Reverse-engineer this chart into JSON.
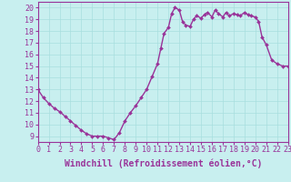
{
  "x": [
    0,
    0.5,
    1,
    1.5,
    2,
    2.5,
    3,
    3.5,
    4,
    4.5,
    5,
    5.5,
    6,
    6.5,
    7,
    7.5,
    8,
    8.5,
    9,
    9.5,
    10,
    10.5,
    11,
    11.3,
    11.6,
    12,
    12.3,
    12.6,
    13,
    13.3,
    13.6,
    14,
    14.3,
    14.6,
    15,
    15.3,
    15.6,
    16,
    16.3,
    16.6,
    17,
    17.3,
    17.6,
    18,
    18.3,
    18.6,
    19,
    19.3,
    19.6,
    20,
    20.3,
    20.6,
    21,
    21.5,
    22,
    22.5,
    23
  ],
  "y": [
    13.0,
    12.3,
    11.8,
    11.4,
    11.1,
    10.7,
    10.3,
    9.9,
    9.5,
    9.2,
    9.0,
    9.0,
    9.0,
    8.85,
    8.7,
    9.3,
    10.3,
    11.0,
    11.6,
    12.3,
    13.0,
    14.1,
    15.2,
    16.5,
    17.8,
    18.3,
    19.5,
    20.0,
    19.8,
    18.8,
    18.5,
    18.4,
    19.0,
    19.3,
    19.1,
    19.4,
    19.6,
    19.2,
    19.8,
    19.5,
    19.2,
    19.6,
    19.3,
    19.5,
    19.4,
    19.3,
    19.6,
    19.4,
    19.3,
    19.2,
    18.8,
    17.5,
    16.8,
    15.5,
    15.2,
    15.0,
    15.0
  ],
  "xlim": [
    0,
    23
  ],
  "ylim": [
    8.5,
    20.5
  ],
  "yticks": [
    9,
    10,
    11,
    12,
    13,
    14,
    15,
    16,
    17,
    18,
    19,
    20
  ],
  "xticks": [
    0,
    1,
    2,
    3,
    4,
    5,
    6,
    7,
    8,
    9,
    10,
    11,
    12,
    13,
    14,
    15,
    16,
    17,
    18,
    19,
    20,
    21,
    22,
    23
  ],
  "xlabel": "Windchill (Refroidissement éolien,°C)",
  "line_color": "#993399",
  "marker_color": "#993399",
  "bg_color": "#C8EFEF",
  "grid_color": "#A8DEDE",
  "axis_color": "#993399",
  "tick_color": "#993399",
  "label_color": "#993399",
  "font": "monospace",
  "fontsize_xlabel": 7.0,
  "fontsize_ticks": 6.0,
  "line_width": 1.0,
  "marker_size": 2.0
}
